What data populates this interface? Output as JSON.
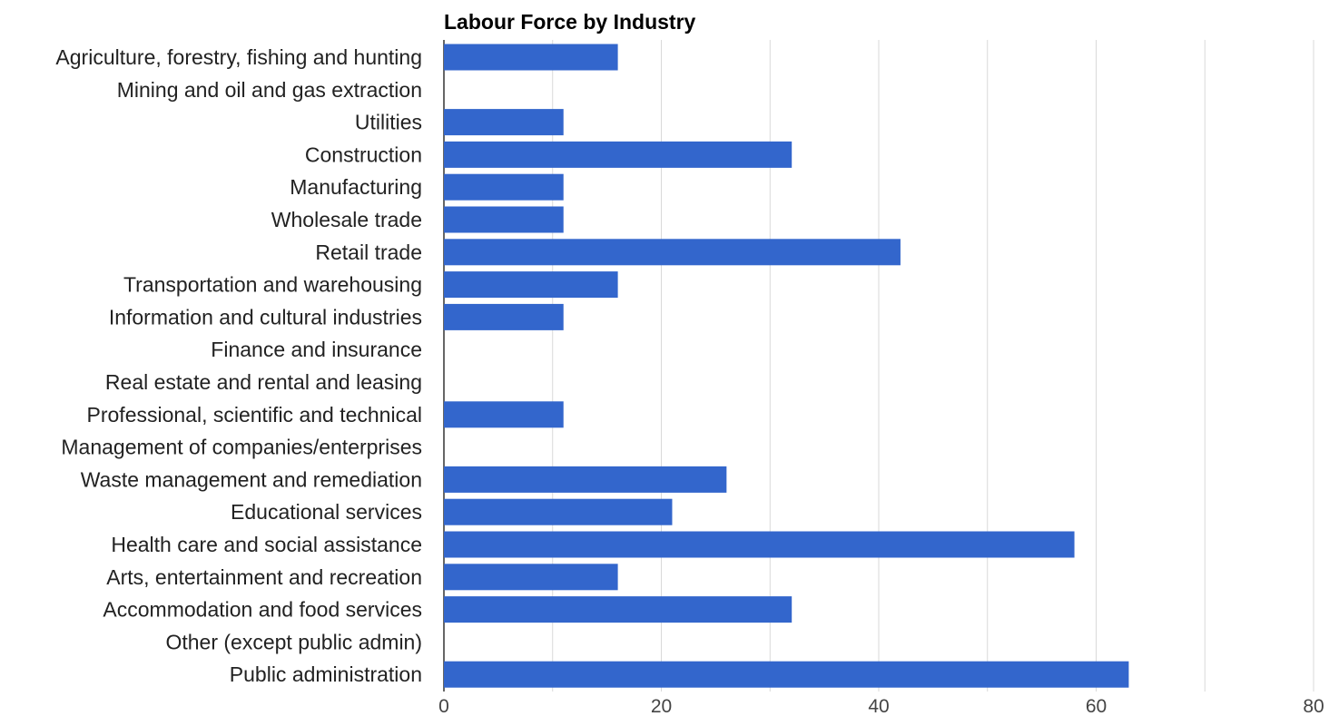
{
  "chart_data": {
    "type": "bar",
    "orientation": "horizontal",
    "title": "Labour Force by Industry",
    "xlabel": "",
    "ylabel": "",
    "xlim": [
      0,
      80
    ],
    "x_ticks": [
      "0",
      "20",
      "40",
      "60",
      "80"
    ],
    "x_tick_values": [
      0,
      20,
      40,
      60,
      80
    ],
    "grid": true,
    "legend": "none",
    "bar_color": "#3366cc",
    "gridline_color": "#d9d9d9",
    "categories": [
      "Agriculture, forestry, fishing and hunting",
      "Mining and oil and gas extraction",
      "Utilities",
      "Construction",
      "Manufacturing",
      "Wholesale trade",
      "Retail trade",
      "Transportation and warehousing",
      "Information and cultural industries",
      "Finance and insurance",
      "Real estate and rental and leasing",
      "Professional, scientific and technical",
      "Management of companies/enterprises",
      "Waste management and remediation",
      "Educational services",
      "Health care and social assistance",
      "Arts, entertainment and recreation",
      "Accommodation and food services",
      "Other (except public admin)",
      "Public administration"
    ],
    "values": [
      16,
      0,
      11,
      32,
      11,
      11,
      42,
      16,
      11,
      0,
      0,
      11,
      0,
      26,
      21,
      58,
      16,
      32,
      0,
      63
    ]
  }
}
